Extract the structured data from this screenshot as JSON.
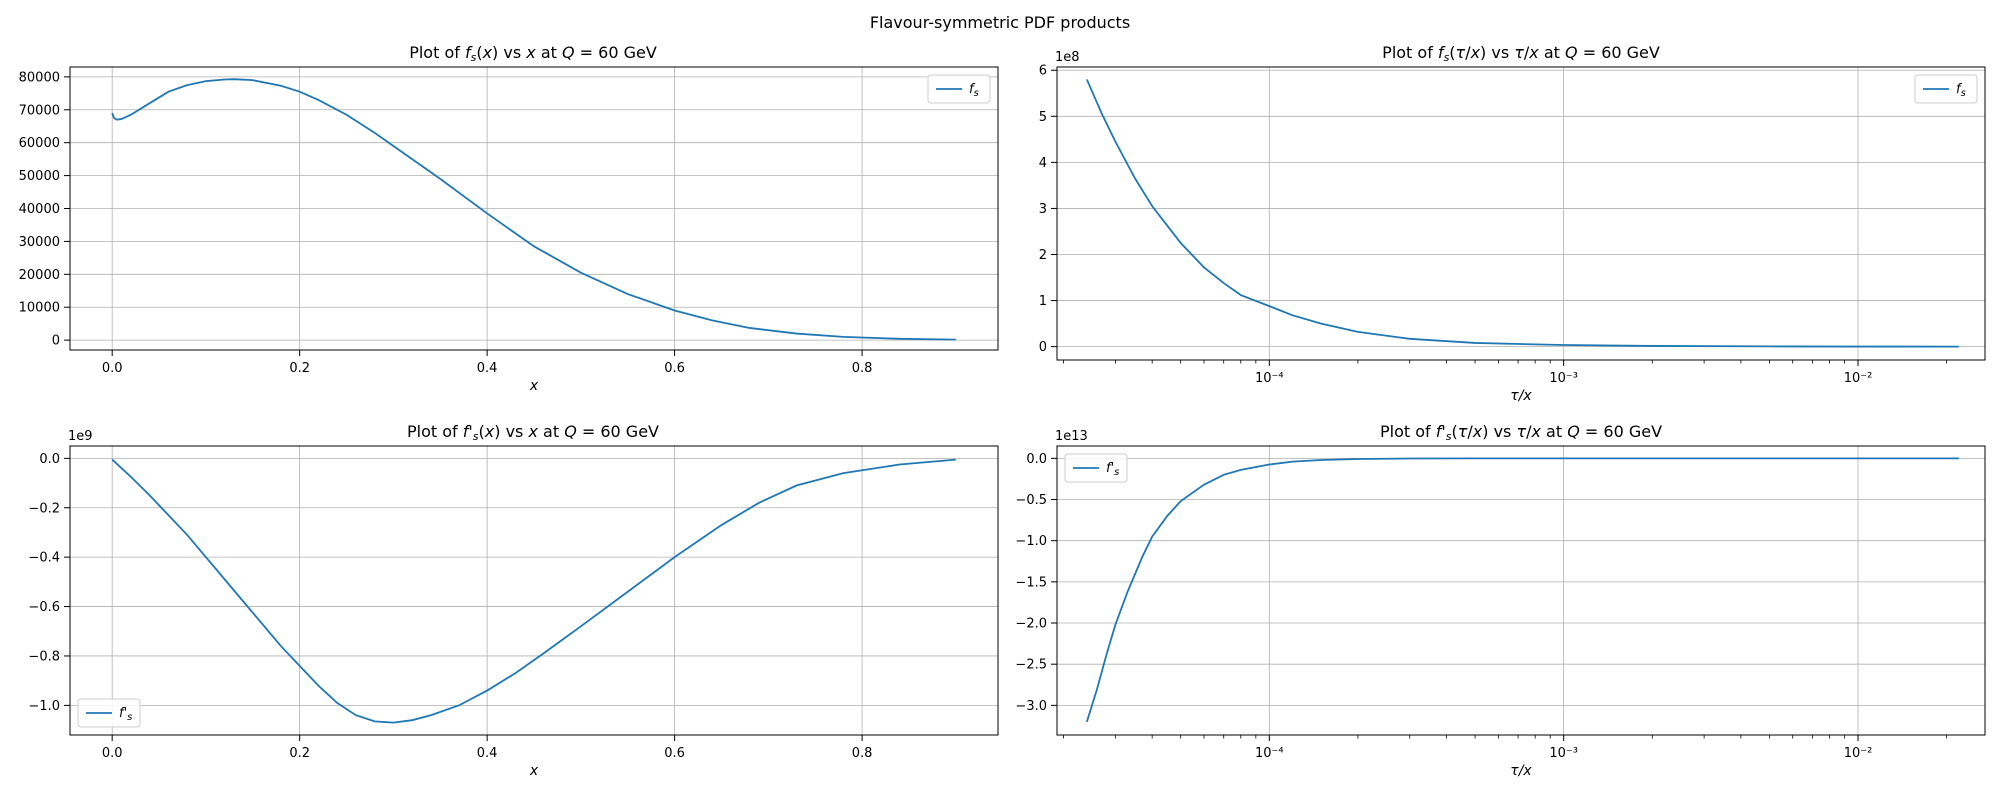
{
  "figure": {
    "title": "Flavour-symmetric PDF products"
  },
  "chart_data": [
    {
      "type": "line",
      "title": "Plot of f_s(x) vs x at Q = 60 GeV",
      "xlabel": "x",
      "ylabel": "",
      "xscale": "linear",
      "xlim": [
        -0.045,
        0.945
      ],
      "ylim": [
        -3000,
        83000
      ],
      "y_offset_label": "",
      "xticks": [
        0.0,
        0.2,
        0.4,
        0.6,
        0.8
      ],
      "xtick_labels": [
        "0.0",
        "0.2",
        "0.4",
        "0.6",
        "0.8"
      ],
      "yticks": [
        0,
        10000,
        20000,
        30000,
        40000,
        50000,
        60000,
        70000,
        80000
      ],
      "ytick_labels": [
        "0",
        "10000",
        "20000",
        "30000",
        "40000",
        "50000",
        "60000",
        "70000",
        "80000"
      ],
      "grid": true,
      "legend_position": "top-right",
      "color": "#1f77b4",
      "series": [
        {
          "name": "f_s",
          "x": [
            0.0,
            0.002,
            0.005,
            0.01,
            0.02,
            0.04,
            0.06,
            0.08,
            0.1,
            0.12,
            0.13,
            0.15,
            0.18,
            0.2,
            0.22,
            0.25,
            0.28,
            0.3,
            0.35,
            0.4,
            0.45,
            0.5,
            0.55,
            0.6,
            0.64,
            0.68,
            0.73,
            0.78,
            0.84,
            0.9
          ],
          "y": [
            69000,
            67500,
            67000,
            67200,
            68500,
            72000,
            75500,
            77500,
            78700,
            79200,
            79300,
            79000,
            77300,
            75500,
            73000,
            68500,
            63000,
            59000,
            49000,
            38500,
            28500,
            20500,
            14000,
            9000,
            6000,
            3700,
            2000,
            1000,
            400,
            150
          ]
        }
      ]
    },
    {
      "type": "line",
      "title": "Plot of f_s(τ/x) vs τ/x at Q = 60 GeV",
      "xlabel": "τ/x",
      "ylabel": "",
      "xscale": "log",
      "xlim": [
        1.9e-05,
        0.027
      ],
      "ylim": [
        -29000000.0,
        607000000.0
      ],
      "y_offset_label": "1e8",
      "xticks": [
        0.0001,
        0.001,
        0.01
      ],
      "xtick_labels": [
        "10⁻⁴",
        "10⁻³",
        "10⁻²"
      ],
      "yticks": [
        0,
        100000000.0,
        200000000.0,
        300000000.0,
        400000000.0,
        500000000.0,
        600000000.0
      ],
      "ytick_labels": [
        "0",
        "1",
        "2",
        "3",
        "4",
        "5",
        "6"
      ],
      "grid": true,
      "legend_position": "top-right",
      "color": "#1f77b4",
      "series": [
        {
          "name": "f_s",
          "x": [
            2.4e-05,
            2.7e-05,
            3e-05,
            3.5e-05,
            4e-05,
            5e-05,
            6e-05,
            7e-05,
            8e-05,
            0.0001,
            0.00012,
            0.00015,
            0.0002,
            0.0003,
            0.0005,
            0.001,
            0.002,
            0.005,
            0.01,
            0.022
          ],
          "y": [
            580000000.0,
            505000000.0,
            445000000.0,
            365000000.0,
            305000000.0,
            225000000.0,
            172000000.0,
            138000000.0,
            112000000.0,
            88000000.0,
            68000000.0,
            50000000.0,
            32000000.0,
            17000000.0,
            8000000.0,
            3500000.0,
            1500000.0,
            500000.0,
            200000.0,
            100000.0
          ]
        }
      ]
    },
    {
      "type": "line",
      "title": "Plot of f'_s(x) vs x at Q = 60 GeV",
      "xlabel": "x",
      "ylabel": "",
      "xscale": "linear",
      "xlim": [
        -0.045,
        0.945
      ],
      "ylim": [
        -1120000000.0,
        50000000.0
      ],
      "y_offset_label": "1e9",
      "xticks": [
        0.0,
        0.2,
        0.4,
        0.6,
        0.8
      ],
      "xtick_labels": [
        "0.0",
        "0.2",
        "0.4",
        "0.6",
        "0.8"
      ],
      "yticks": [
        -1000000000.0,
        -800000000.0,
        -600000000.0,
        -400000000.0,
        -200000000.0,
        0
      ],
      "ytick_labels": [
        "−1.0",
        "−0.8",
        "−0.6",
        "−0.4",
        "−0.2",
        "0.0"
      ],
      "grid": true,
      "legend_position": "bottom-left",
      "color": "#1f77b4",
      "series": [
        {
          "name": "f'_s",
          "x": [
            0.0,
            0.02,
            0.04,
            0.06,
            0.08,
            0.1,
            0.12,
            0.14,
            0.16,
            0.18,
            0.2,
            0.22,
            0.24,
            0.26,
            0.28,
            0.3,
            0.32,
            0.34,
            0.37,
            0.4,
            0.43,
            0.46,
            0.5,
            0.55,
            0.6,
            0.65,
            0.69,
            0.73,
            0.78,
            0.84,
            0.9
          ],
          "y": [
            -5000000.0,
            -75000000.0,
            -150000000.0,
            -230000000.0,
            -310000000.0,
            -400000000.0,
            -490000000.0,
            -580000000.0,
            -670000000.0,
            -760000000.0,
            -840000000.0,
            -920000000.0,
            -990000000.0,
            -1040000000.0,
            -1065000000.0,
            -1070000000.0,
            -1060000000.0,
            -1040000000.0,
            -1000000000.0,
            -940000000.0,
            -870000000.0,
            -790000000.0,
            -680000000.0,
            -540000000.0,
            -400000000.0,
            -270000000.0,
            -180000000.0,
            -110000000.0,
            -60000000.0,
            -25000000.0,
            -5000000.0
          ]
        }
      ]
    },
    {
      "type": "line",
      "title": "Plot of f'_s(τ/x) vs τ/x at Q = 60 GeV",
      "xlabel": "τ/x",
      "ylabel": "",
      "xscale": "log",
      "xlim": [
        1.9e-05,
        0.027
      ],
      "ylim": [
        -33600000000000.0,
        1500000000000.0
      ],
      "y_offset_label": "1e13",
      "xticks": [
        0.0001,
        0.001,
        0.01
      ],
      "xtick_labels": [
        "10⁻⁴",
        "10⁻³",
        "10⁻²"
      ],
      "yticks": [
        -30000000000000.0,
        -25000000000000.0,
        -20000000000000.0,
        -15000000000000.0,
        -10000000000000.0,
        -5000000000000.0,
        0
      ],
      "ytick_labels": [
        "−3.0",
        "−2.5",
        "−2.0",
        "−1.5",
        "−1.0",
        "−0.5",
        "0.0"
      ],
      "grid": true,
      "legend_position": "top-left",
      "color": "#1f77b4",
      "series": [
        {
          "name": "f'_s",
          "x": [
            2.4e-05,
            2.6e-05,
            2.8e-05,
            3e-05,
            3.3e-05,
            3.7e-05,
            4e-05,
            4.5e-05,
            5e-05,
            6e-05,
            7e-05,
            8e-05,
            0.0001,
            0.00012,
            0.00015,
            0.0002,
            0.0003,
            0.0005,
            0.001,
            0.01,
            0.022
          ],
          "y": [
            -32000000000000.0,
            -28000000000000.0,
            -23800000000000.0,
            -20200000000000.0,
            -16200000000000.0,
            -12000000000000.0,
            -9500000000000.0,
            -7000000000000.0,
            -5200000000000.0,
            -3200000000000.0,
            -2000000000000.0,
            -1400000000000.0,
            -750000000000.0,
            -400000000000.0,
            -200000000000.0,
            -80000000000.0,
            -20000000000.0,
            -5000000000.0,
            -1000000000.0,
            0,
            0
          ]
        }
      ]
    }
  ]
}
